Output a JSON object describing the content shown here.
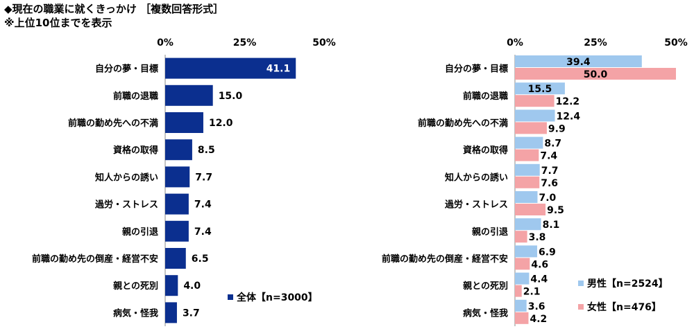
{
  "header": {
    "title": "◆現在の職業に就くきっかけ ［複数回答形式］",
    "note": "※上位10位までを表示"
  },
  "chart_data": [
    {
      "type": "bar",
      "orientation": "horizontal",
      "categories": [
        "自分の夢・目標",
        "前職の退職",
        "前職の勤め先への不満",
        "資格の取得",
        "知人からの誘い",
        "過労・ストレス",
        "親の引退",
        "前職の勤め先の倒産・経営不安",
        "親との死別",
        "病気・怪我"
      ],
      "series": [
        {
          "name": "全体【n=3000】",
          "values": [
            41.1,
            15.0,
            12.0,
            8.5,
            7.7,
            7.4,
            7.4,
            6.5,
            4.0,
            3.7
          ],
          "color": "#0b2f8f"
        }
      ],
      "value_labels": [
        "41.1",
        "15.0",
        "12.0",
        "8.5",
        "7.7",
        "7.4",
        "7.4",
        "6.5",
        "4.0",
        "3.7"
      ],
      "xlim": [
        0,
        50
      ],
      "ticks": [
        "0%",
        "25%",
        "50%"
      ],
      "legend": "bottom-right"
    },
    {
      "type": "bar",
      "orientation": "horizontal",
      "categories": [
        "自分の夢・目標",
        "前職の退職",
        "前職の勤め先への不満",
        "資格の取得",
        "知人からの誘い",
        "過労・ストレス",
        "親の引退",
        "前職の勤め先の倒産・経営不安",
        "親との死別",
        "病気・怪我"
      ],
      "series": [
        {
          "name": "男性【n=2524】",
          "values": [
            39.4,
            15.5,
            12.4,
            8.7,
            7.7,
            7.0,
            8.1,
            6.9,
            4.4,
            3.6
          ],
          "value_labels": [
            "39.4",
            "15.5",
            "12.4",
            "8.7",
            "7.7",
            "7.0",
            "8.1",
            "6.9",
            "4.4",
            "3.6"
          ],
          "color": "#9fc8ee"
        },
        {
          "name": "女性【n=476】",
          "values": [
            50.0,
            12.2,
            9.9,
            7.4,
            7.6,
            9.5,
            3.8,
            4.6,
            2.1,
            4.2
          ],
          "value_labels": [
            "50.0",
            "12.2",
            "9.9",
            "7.4",
            "7.6",
            "9.5",
            "3.8",
            "4.6",
            "2.1",
            "4.2"
          ],
          "color": "#f4a3a6"
        }
      ],
      "xlim": [
        0,
        50
      ],
      "ticks": [
        "0%",
        "25%",
        "50%"
      ],
      "legend": "bottom-right"
    }
  ]
}
